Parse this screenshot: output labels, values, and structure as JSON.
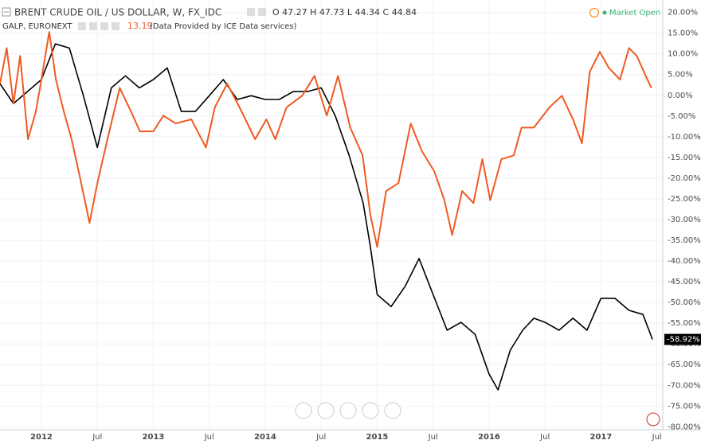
{
  "chart_data": {
    "type": "line",
    "title": "BRENT CRUDE OIL / US DOLLAR, W, FX_IDC",
    "ohlc": "O 47.27 H 47.73 L 44.34 C 44.84",
    "compare_value": "13.19",
    "source_note": "(Data Provided by ICE Data services)",
    "status": "Market Open",
    "grid": true,
    "xlim": [
      2011.63,
      2017.552
    ],
    "ylim": [
      -80.7,
      23
    ],
    "xticks": [
      2012,
      {
        "value": 2012.5,
        "label": "Jul"
      },
      2013,
      {
        "value": 2013.5,
        "label": "Jul"
      },
      2014,
      {
        "value": 2014.5,
        "label": "Jul"
      },
      2015,
      {
        "value": 2015.5,
        "label": "Jul"
      },
      2016,
      {
        "value": 2016.5,
        "label": "Jul"
      },
      2017,
      {
        "value": 2017.5,
        "label": "Jul"
      }
    ],
    "yticks": [
      {
        "value": 20,
        "label": "20.00%"
      },
      {
        "value": 15,
        "label": "15.00%"
      },
      {
        "value": 10,
        "label": "10.00%"
      },
      {
        "value": 5,
        "label": "5.00%"
      },
      {
        "value": 0,
        "label": "0.00%"
      },
      {
        "value": -5,
        "label": "-5.00%"
      },
      {
        "value": -10,
        "label": "-10.00%"
      },
      {
        "value": -15,
        "label": "-15.00%"
      },
      {
        "value": -20,
        "label": "-20.00%"
      },
      {
        "value": -25,
        "label": "-25.00%"
      },
      {
        "value": -30,
        "label": "-30.00%"
      },
      {
        "value": -35,
        "label": "-35.00%"
      },
      {
        "value": -40,
        "label": "-40.00%"
      },
      {
        "value": -45,
        "label": "-45.00%"
      },
      {
        "value": -50,
        "label": "-50.00%"
      },
      {
        "value": -55,
        "label": "-55.00%"
      },
      {
        "value": -60,
        "label": "-60.00%"
      },
      {
        "value": -65,
        "label": "-65.00%"
      },
      {
        "value": -70,
        "label": "-70.00%"
      },
      {
        "value": -75,
        "label": "-75.00%"
      },
      {
        "value": -80,
        "label": "-80.00%"
      }
    ],
    "last_label": {
      "value": -58.92,
      "label": "-58.92%"
    },
    "series": [
      {
        "name": "BRENT CRUDE OIL / US DOLLAR, W, FX_IDC",
        "color": "#000000",
        "x": [
          2011.63,
          2011.75,
          2011.875,
          2012,
          2012.125,
          2012.25,
          2012.375,
          2012.5,
          2012.625,
          2012.75,
          2012.875,
          2013,
          2013.125,
          2013.25,
          2013.375,
          2013.5,
          2013.625,
          2013.75,
          2013.875,
          2014,
          2014.125,
          2014.25,
          2014.375,
          2014.5,
          2014.625,
          2014.75,
          2014.875,
          2014.94,
          2015,
          2015.125,
          2015.25,
          2015.375,
          2015.5,
          2015.625,
          2015.75,
          2015.875,
          2016,
          2016.08,
          2016.19,
          2016.3,
          2016.4,
          2016.5,
          2016.625,
          2016.75,
          2016.875,
          2017,
          2017.125,
          2017.25,
          2017.375,
          2017.46
        ],
        "values": [
          2.8,
          -2,
          0.9,
          3.8,
          12.4,
          11.4,
          -0.1,
          -12.6,
          1.8,
          4.7,
          1.8,
          3.8,
          6.6,
          -3.9,
          -3.9,
          -0.1,
          3.8,
          -1,
          -0.1,
          -1,
          -1,
          0.9,
          0.9,
          1.8,
          -4.9,
          -14.5,
          -26,
          -36.6,
          -48.1,
          -51,
          -46.1,
          -39.4,
          -48.1,
          -56.7,
          -54.8,
          -57.7,
          -67.3,
          -71.1,
          -61.5,
          -56.7,
          -53.8,
          -54.8,
          -56.7,
          -53.8,
          -56.7,
          -49,
          -49,
          -51.9,
          -52.9,
          -58.92
        ]
      },
      {
        "name": "GALP, EURONEXT",
        "color": "#f05a22",
        "x": [
          2011.63,
          2011.69,
          2011.75,
          2011.81,
          2011.88,
          2011.95,
          2012,
          2012.07,
          2012.13,
          2012.2,
          2012.27,
          2012.34,
          2012.43,
          2012.5,
          2012.59,
          2012.7,
          2012.8,
          2012.88,
          2013,
          2013.09,
          2013.2,
          2013.34,
          2013.47,
          2013.55,
          2013.66,
          2013.77,
          2013.91,
          2014.01,
          2014.09,
          2014.19,
          2014.33,
          2014.44,
          2014.55,
          2014.65,
          2014.76,
          2014.87,
          2014.94,
          2015,
          2015.08,
          2015.19,
          2015.3,
          2015.4,
          2015.51,
          2015.6,
          2015.67,
          2015.76,
          2015.86,
          2015.94,
          2016.01,
          2016.11,
          2016.22,
          2016.29,
          2016.4,
          2016.54,
          2016.65,
          2016.75,
          2016.83,
          2016.9,
          2016.99,
          2017.07,
          2017.17,
          2017.25,
          2017.32,
          2017.4,
          2017.45
        ],
        "values": [
          2.8,
          11.4,
          -2,
          9.5,
          -10.6,
          -3.9,
          3.8,
          15.3,
          3.8,
          -3.9,
          -10.6,
          -19.3,
          -30.8,
          -21.2,
          -10.6,
          1.8,
          -3.9,
          -8.7,
          -8.7,
          -4.9,
          -6.8,
          -5.8,
          -12.6,
          -2.9,
          2.8,
          -2.9,
          -10.6,
          -5.8,
          -10.6,
          -2.9,
          -0.1,
          4.7,
          -4.9,
          4.7,
          -7.8,
          -14.5,
          -28.9,
          -36.6,
          -23.1,
          -21.2,
          -6.8,
          -13.5,
          -18.3,
          -25.3,
          -33.7,
          -23.1,
          -26,
          -15.4,
          -25.3,
          -15.4,
          -14.5,
          -7.8,
          -7.8,
          -2.9,
          -0.1,
          -5.8,
          -11.6,
          5.7,
          10.5,
          6.6,
          3.8,
          11.4,
          9.5,
          4.7,
          1.8
        ]
      }
    ]
  }
}
